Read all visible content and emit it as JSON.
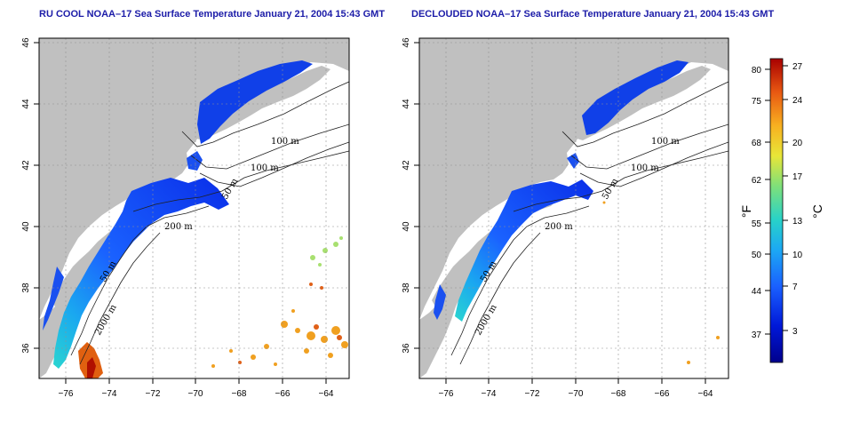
{
  "panels": [
    {
      "title": "RU COOL NOAA–17 Sea Surface Temperature January 21, 2004 15:43 GMT",
      "contours": [
        "100 m",
        "100 m",
        "50 m",
        "200 m",
        "50 m",
        "2000 m"
      ]
    },
    {
      "title": "DECLOUDED NOAA–17 Sea Surface Temperature January 21, 2004 15:43 GMT",
      "contours": [
        "100 m",
        "100 m",
        "50 m",
        "200 m",
        "50 m",
        "2000 m"
      ]
    }
  ],
  "axes": {
    "x_ticks": [
      "−76",
      "−74",
      "−72",
      "−70",
      "−68",
      "−66",
      "−64"
    ],
    "y_ticks": [
      "36",
      "38",
      "40",
      "42",
      "44",
      "46"
    ]
  },
  "colorbar": {
    "fahrenheit_label": "°F",
    "celsius_label": "°C",
    "fahrenheit_ticks": [
      "80",
      "75",
      "68",
      "62",
      "55",
      "50",
      "44",
      "37"
    ],
    "celsius_ticks": [
      "27",
      "24",
      "20",
      "17",
      "13",
      "10",
      "7",
      "3"
    ],
    "colors": [
      "#0000a0",
      "#0020e0",
      "#1a6cff",
      "#19b4f0",
      "#2ad6c0",
      "#8fe070",
      "#f2e030",
      "#f8a020",
      "#e85010",
      "#b00000"
    ]
  },
  "land_color": "#c0c0c0"
}
